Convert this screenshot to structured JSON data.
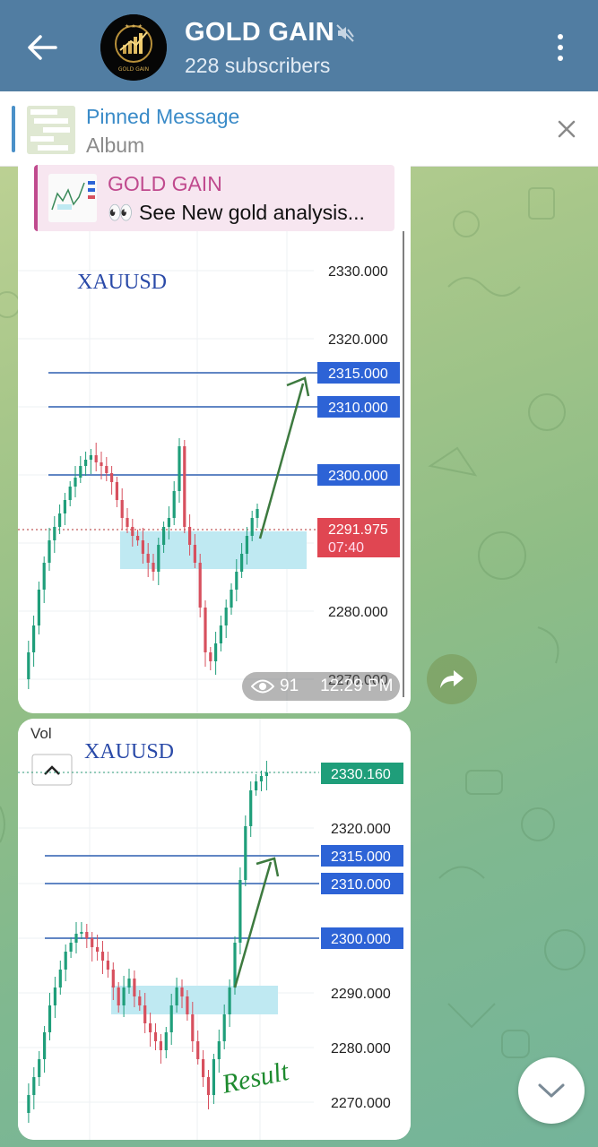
{
  "header": {
    "channel_name": "GOLD GAIN",
    "subscribers": "228 subscribers",
    "avatar_text": "GOLD GAIN"
  },
  "pinned": {
    "title": "Pinned Message",
    "subtitle": "Album"
  },
  "message1": {
    "reply_name": "GOLD GAIN",
    "reply_text": "👀 See New gold analysis...",
    "views": "91",
    "time": "12:29 PM",
    "chart": {
      "symbol": "XAUUSD",
      "price_labels": [
        "2330.000",
        "2320.000",
        "2280.000",
        "2270.000"
      ],
      "level_labels": [
        "2315.000",
        "2310.000",
        "2300.000"
      ],
      "current_price": "2291.975",
      "countdown": "07:40"
    }
  },
  "message2": {
    "chart": {
      "vol_label": "Vol",
      "symbol": "XAUUSD",
      "current_price": "2330.160",
      "price_labels": [
        "2320.000",
        "2290.000",
        "2280.000",
        "2270.000"
      ],
      "level_labels": [
        "2315.000",
        "2310.000",
        "2300.000"
      ],
      "result_text": "Result"
    }
  },
  "colors": {
    "header_bg": "#517da2",
    "accent_blue": "#2d63d6",
    "bull": "#1f9e7a",
    "bear": "#d7505e",
    "zone": "#bfe9f2",
    "arrow": "#3d7a3f"
  }
}
